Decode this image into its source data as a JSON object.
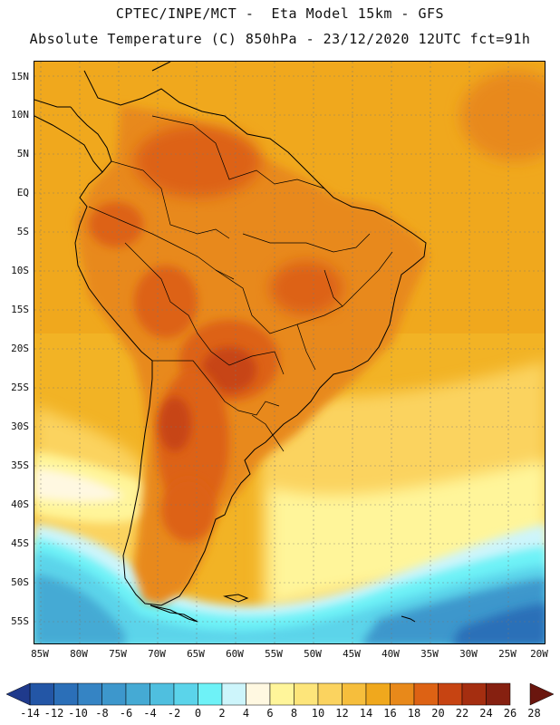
{
  "header": {
    "line1": "CPTEC/INPE/MCT -  Eta Model 15km - GFS",
    "line2": "Absolute Temperature (C) 850hPa - 23/12/2020 12UTC fct=91h"
  },
  "map": {
    "lat_labels": [
      "15N",
      "10N",
      "5N",
      "EQ",
      "5S",
      "10S",
      "15S",
      "20S",
      "25S",
      "30S",
      "35S",
      "40S",
      "45S",
      "50S",
      "55S"
    ],
    "lon_labels": [
      "85W",
      "80W",
      "75W",
      "70W",
      "65W",
      "60W",
      "55W",
      "50W",
      "45W",
      "40W",
      "35W",
      "30W",
      "25W",
      "20W"
    ],
    "lat_range": [
      15,
      -57
    ],
    "lon_range": [
      -85,
      -20
    ]
  },
  "colorbar": {
    "ticks": [
      "-14",
      "-12",
      "-10",
      "-8",
      "-6",
      "-4",
      "-2",
      "0",
      "2",
      "4",
      "6",
      "8",
      "10",
      "12",
      "14",
      "16",
      "18",
      "20",
      "22",
      "24",
      "26",
      "28"
    ],
    "colors": [
      "#1f3a8c",
      "#2356a6",
      "#2b6fb8",
      "#3584c4",
      "#3d97cc",
      "#45aad4",
      "#4fbfdf",
      "#5bd4ea",
      "#6ef2f7",
      "#cdf5fb",
      "#fff8e1",
      "#fff59a",
      "#fde57a",
      "#fbd35f",
      "#f6be3c",
      "#f0a81d",
      "#e8891a",
      "#dd6214",
      "#c74412",
      "#a52e10",
      "#862010",
      "#6a160e"
    ]
  },
  "colors": {
    "ocean_warm": "#f2b325",
    "land_hot": "#dd6214",
    "land_very_hot": "#c74412",
    "cold_south": "#45aad4",
    "coast": "#000000"
  }
}
